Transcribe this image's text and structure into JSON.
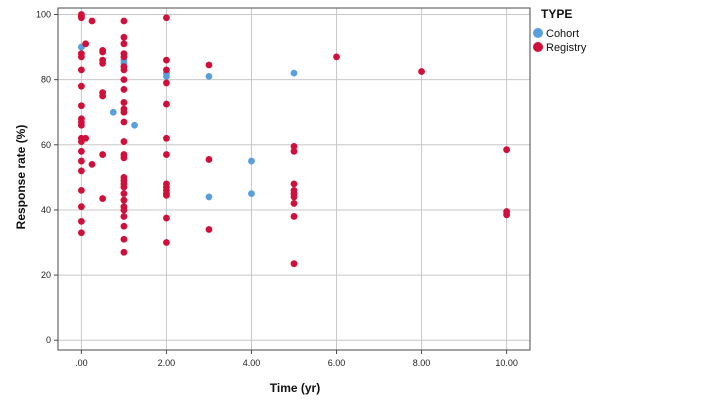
{
  "chart_data": {
    "type": "scatter",
    "xlabel": "Time (yr)",
    "ylabel": "Response rate (%)",
    "xlim": [
      -0.55,
      10.55
    ],
    "ylim": [
      -3,
      102
    ],
    "x_ticks": [
      0,
      2,
      4,
      6,
      8,
      10
    ],
    "x_tick_labels": [
      ".00",
      "2.00",
      "4.00",
      "6.00",
      "8.00",
      "10.00"
    ],
    "y_ticks": [
      0,
      20,
      40,
      60,
      80,
      100
    ],
    "y_tick_labels": [
      "0",
      "20",
      "40",
      "60",
      "80",
      "100"
    ],
    "grid": true,
    "legend": {
      "title": "TYPE",
      "position": "top-right"
    },
    "series": [
      {
        "name": "Cohort",
        "color": "#5b9ee0",
        "points": [
          [
            0,
            90
          ],
          [
            0.75,
            70
          ],
          [
            1,
            85
          ],
          [
            1,
            86
          ],
          [
            1.25,
            66
          ],
          [
            2,
            81
          ],
          [
            2,
            82
          ],
          [
            3,
            81
          ],
          [
            3,
            44
          ],
          [
            4,
            55
          ],
          [
            4,
            45
          ],
          [
            5,
            82
          ]
        ]
      },
      {
        "name": "Registry",
        "color": "#d0103a",
        "points": [
          [
            0,
            100
          ],
          [
            0,
            99.5
          ],
          [
            0,
            99
          ],
          [
            0,
            88
          ],
          [
            0,
            87
          ],
          [
            0,
            83
          ],
          [
            0,
            78
          ],
          [
            0,
            72
          ],
          [
            0,
            68
          ],
          [
            0,
            67
          ],
          [
            0,
            66
          ],
          [
            0,
            62
          ],
          [
            0,
            61
          ],
          [
            0,
            58
          ],
          [
            0,
            55
          ],
          [
            0,
            52
          ],
          [
            0,
            46
          ],
          [
            0,
            41
          ],
          [
            0,
            36.5
          ],
          [
            0,
            33
          ],
          [
            0.1,
            91
          ],
          [
            0.1,
            62
          ],
          [
            0.25,
            98
          ],
          [
            0.25,
            54
          ],
          [
            0.5,
            89
          ],
          [
            0.5,
            88.5
          ],
          [
            0.5,
            86
          ],
          [
            0.5,
            85
          ],
          [
            0.5,
            76
          ],
          [
            0.5,
            75
          ],
          [
            0.5,
            57
          ],
          [
            0.5,
            43.5
          ],
          [
            1,
            98
          ],
          [
            1,
            93
          ],
          [
            1,
            91
          ],
          [
            1,
            88
          ],
          [
            1,
            87
          ],
          [
            1,
            84
          ],
          [
            1,
            83
          ],
          [
            1,
            80
          ],
          [
            1,
            77
          ],
          [
            1,
            73
          ],
          [
            1,
            71
          ],
          [
            1,
            70
          ],
          [
            1,
            67
          ],
          [
            1,
            61
          ],
          [
            1,
            57
          ],
          [
            1,
            56
          ],
          [
            1,
            50
          ],
          [
            1,
            49
          ],
          [
            1,
            48
          ],
          [
            1,
            47
          ],
          [
            1,
            45
          ],
          [
            1,
            43
          ],
          [
            1,
            41
          ],
          [
            1,
            40
          ],
          [
            1,
            38
          ],
          [
            1,
            35
          ],
          [
            1,
            31
          ],
          [
            1,
            27
          ],
          [
            2,
            99
          ],
          [
            2,
            86
          ],
          [
            2,
            83
          ],
          [
            2,
            79
          ],
          [
            2,
            72.5
          ],
          [
            2,
            62
          ],
          [
            2,
            57
          ],
          [
            2,
            48
          ],
          [
            2,
            47
          ],
          [
            2,
            46
          ],
          [
            2,
            45
          ],
          [
            2,
            44.5
          ],
          [
            2,
            37.5
          ],
          [
            2,
            30
          ],
          [
            3,
            84.5
          ],
          [
            3,
            55.5
          ],
          [
            3,
            34
          ],
          [
            5,
            59.5
          ],
          [
            5,
            58
          ],
          [
            5,
            48
          ],
          [
            5,
            46
          ],
          [
            5,
            45
          ],
          [
            5,
            44
          ],
          [
            5,
            42
          ],
          [
            5,
            38
          ],
          [
            5,
            23.5
          ],
          [
            6,
            87
          ],
          [
            8,
            82.5
          ],
          [
            10,
            58.5
          ],
          [
            10,
            39.5
          ],
          [
            10,
            38.5
          ]
        ]
      }
    ]
  }
}
